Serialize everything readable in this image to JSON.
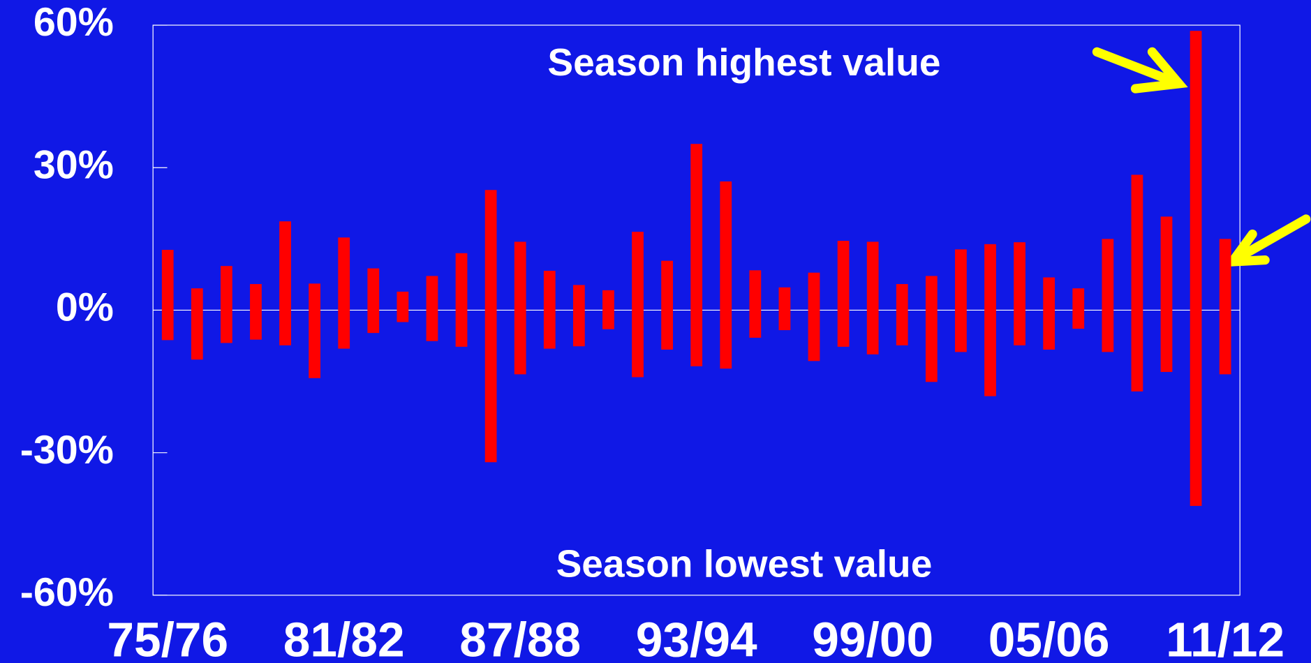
{
  "chart_data": {
    "type": "floating-bar",
    "annotations": [
      "Season highest value",
      "Season lowest value"
    ],
    "categories": [
      "75/76",
      null,
      null,
      null,
      null,
      null,
      "81/82",
      null,
      null,
      null,
      null,
      null,
      "87/88",
      null,
      null,
      null,
      null,
      null,
      "93/94",
      null,
      null,
      null,
      null,
      null,
      "99/00",
      null,
      null,
      null,
      null,
      null,
      "05/06",
      null,
      null,
      null,
      null,
      null,
      "11/12"
    ],
    "series": [
      {
        "color": "#ff0000",
        "values": [
          12.7,
          4.6,
          9.3,
          5.5,
          18.7,
          5.6,
          15.3,
          8.8,
          3.9,
          7.2,
          12.0,
          25.3,
          14.4,
          8.3,
          5.3,
          4.2,
          16.5,
          10.4,
          35.0,
          27.1,
          8.4,
          4.8,
          7.9,
          14.6,
          14.4,
          5.5,
          7.2,
          12.8,
          13.9,
          14.3,
          6.9,
          4.6,
          15.0,
          28.5,
          19.7,
          58.8,
          15.0
        ]
      },
      {
        "color": "#ff0000",
        "values": [
          -6.3,
          -10.4,
          -6.9,
          -6.2,
          -7.4,
          -14.3,
          -8.1,
          -4.8,
          -2.5,
          -6.5,
          -7.7,
          -32.0,
          -13.5,
          -8.1,
          -7.6,
          -4.0,
          -14.1,
          -8.3,
          -11.8,
          -12.3,
          -5.8,
          -4.2,
          -10.7,
          -7.7,
          -9.3,
          -7.4,
          -15.1,
          -8.8,
          -18.1,
          -7.4,
          -8.3,
          -3.9,
          -8.8,
          -17.1,
          -13.0,
          -41.2,
          -13.5
        ]
      }
    ],
    "ylim": [
      -60,
      60
    ],
    "yticks": [
      {
        "value": -60,
        "label": "-60%"
      },
      {
        "value": -30,
        "label": "-30%"
      },
      {
        "value": 0,
        "label": "0%"
      },
      {
        "value": 30,
        "label": "30%"
      },
      {
        "value": 60,
        "label": "60%"
      }
    ],
    "grid": false
  }
}
